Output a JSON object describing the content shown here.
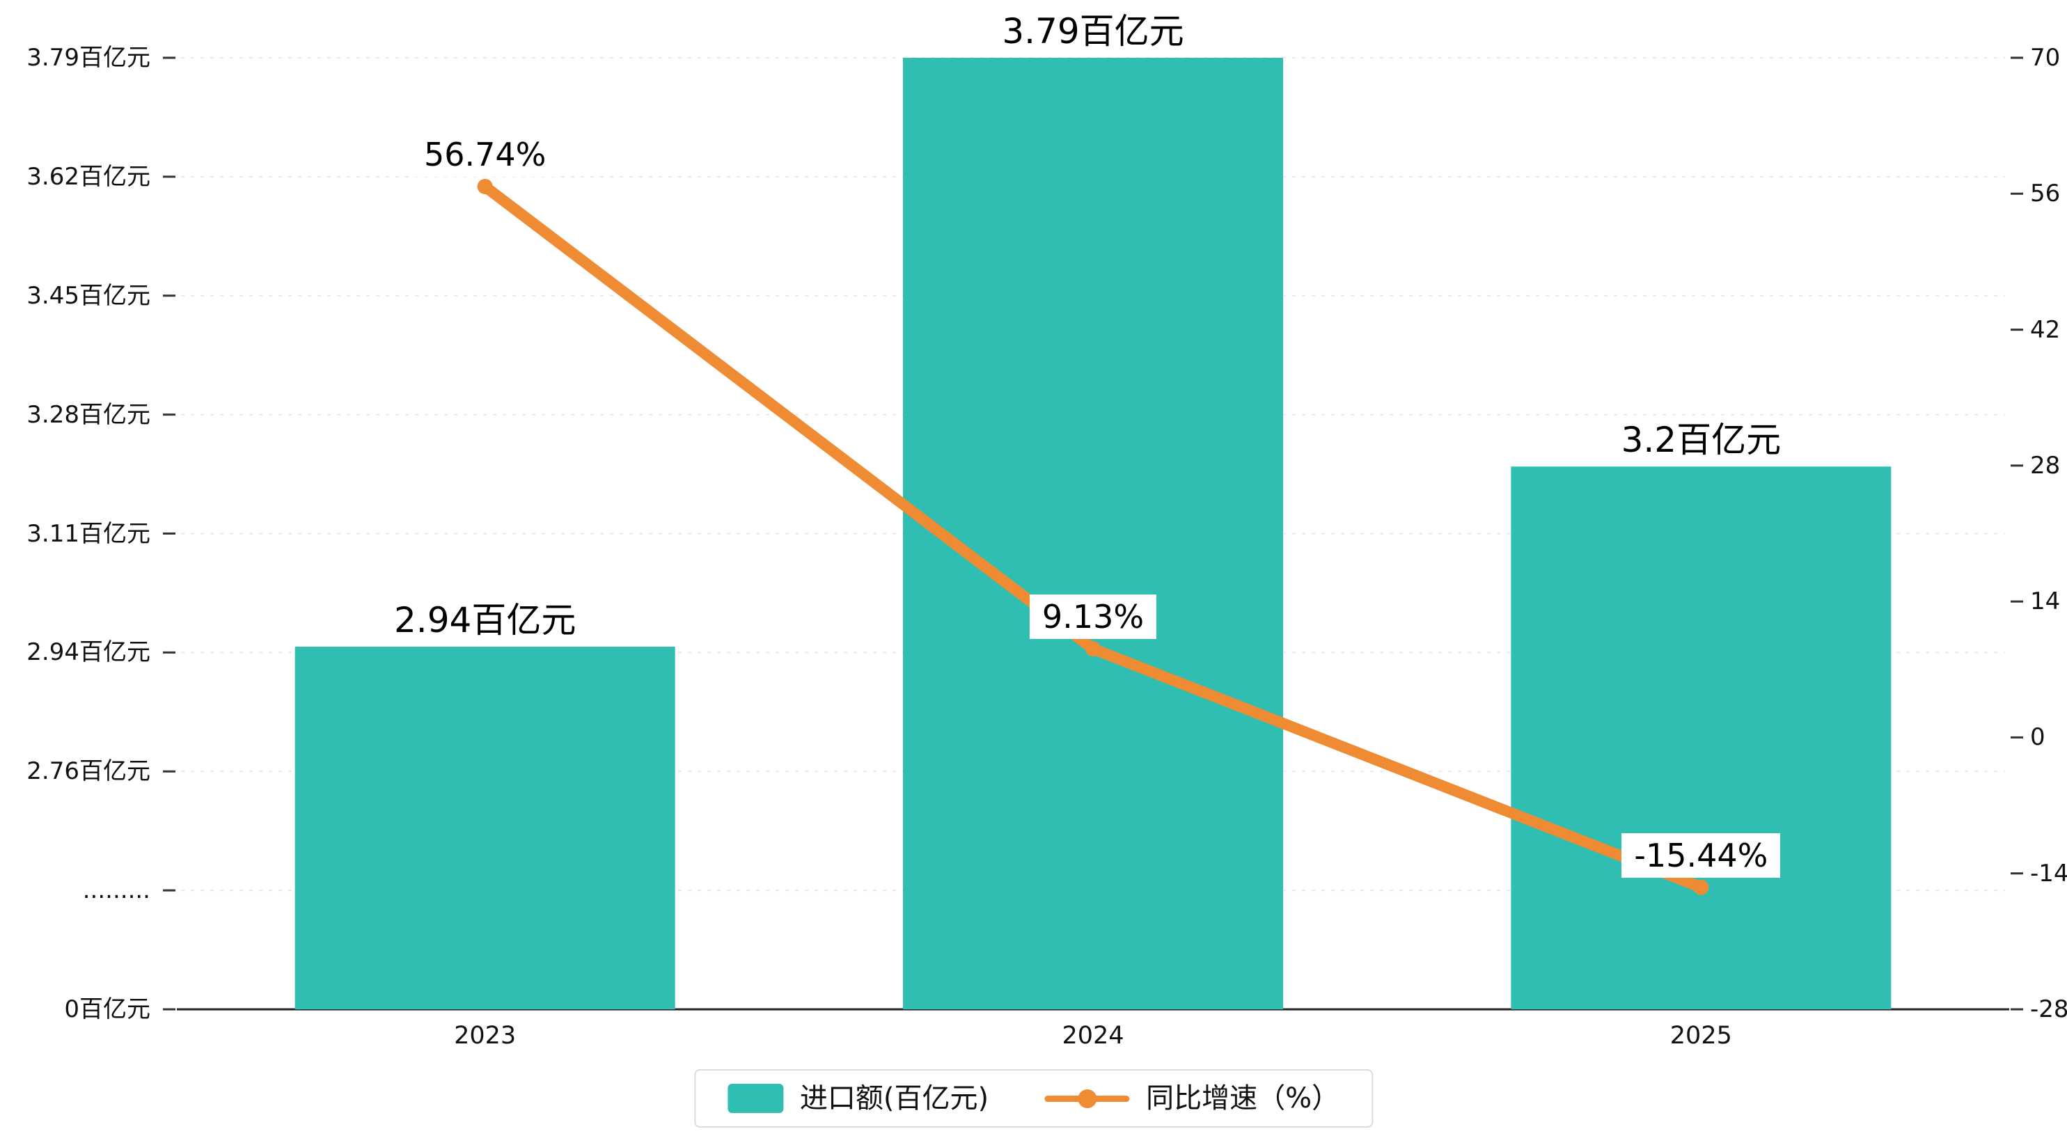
{
  "chart_data": {
    "type": "bar",
    "subtype": "bar+line-combo",
    "categories": [
      "2023",
      "2024",
      "2025"
    ],
    "series": [
      {
        "name": "进口额(百亿元)",
        "type": "bar",
        "color": "#2fbeb1",
        "values": [
          2.94,
          3.79,
          3.2
        ],
        "labels": [
          "2.94百亿元",
          "3.79百亿元",
          "3.2百亿元"
        ]
      },
      {
        "name": "同比增速（%）",
        "type": "line",
        "color": "#ee8b33",
        "values": [
          56.74,
          9.13,
          -15.44
        ],
        "labels": [
          "56.74%",
          "9.13%",
          "-15.44%"
        ]
      }
    ],
    "left_axis": {
      "tick_labels": [
        "0百亿元",
        ".........",
        "2.76百亿元",
        "2.94百亿元",
        "3.11百亿元",
        "3.28百亿元",
        "3.45百亿元",
        "3.62百亿元",
        "3.79百亿元"
      ],
      "broken_axis": true,
      "value_start": 2.76,
      "value_end": 3.79,
      "start_tick_index": 2,
      "end_tick_index": 8
    },
    "right_axis": {
      "tick_labels": [
        "-28",
        "-14",
        "0",
        "14",
        "28",
        "42",
        "56",
        "70"
      ],
      "min": -28,
      "max": 70
    },
    "legend": [
      {
        "label": "进口额(百亿元)",
        "marker": "bar-swatch"
      },
      {
        "label": "同比增速（%）",
        "marker": "line-dot"
      }
    ],
    "grid": "dashed-horizontal",
    "background": "#ffffff",
    "title": "",
    "xlabel": "",
    "ylabel_left": "百亿元",
    "ylabel_right": "%"
  }
}
